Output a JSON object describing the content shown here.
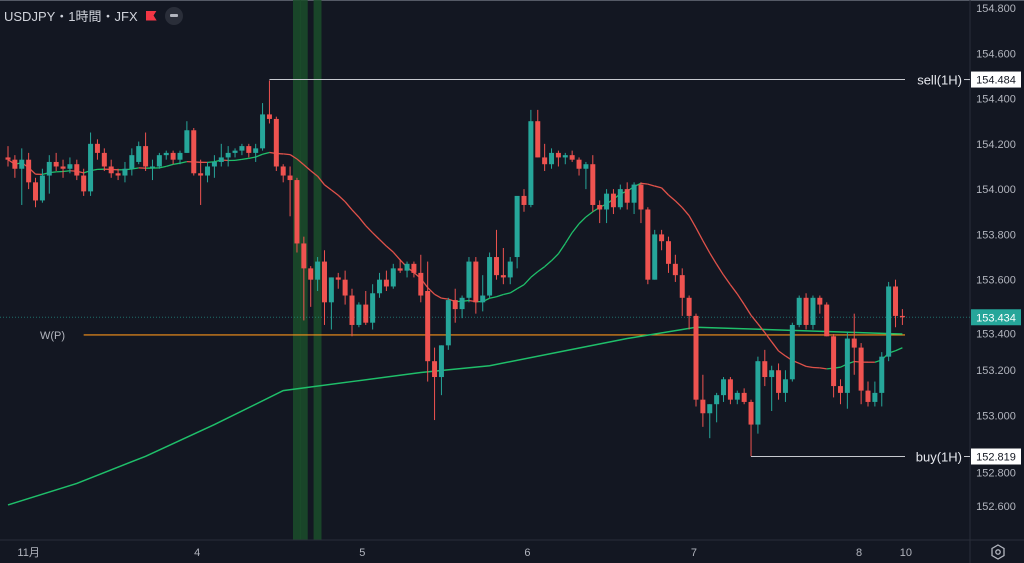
{
  "header": {
    "title": "USDJPY・1時間・JFX",
    "flag_icon": "red-flag-icon",
    "collapse_icon": "minus-circle-icon"
  },
  "colors": {
    "background": "#131722",
    "up": "#26a69a",
    "down": "#ef5350",
    "ma_up": "#1fbf6a",
    "ma_down": "#e0524a",
    "pivot": "#f7931a",
    "highlight": "#1b4d2a",
    "level_line": "#c7c9cf"
  },
  "chart_data": {
    "type": "candlestick",
    "symbol": "USDJPY",
    "interval": "1時間",
    "exchange": "JFX",
    "ylim": [
      152.55,
      154.82
    ],
    "y_ticks": [
      "154.800",
      "154.600",
      "154.400",
      "154.200",
      "154.000",
      "153.800",
      "153.600",
      "153.400",
      "153.200",
      "153.000",
      "152.800",
      "152.600"
    ],
    "x_ticks": [
      {
        "label": "11月",
        "candle": 3
      },
      {
        "label": "4",
        "candle": 27.5
      },
      {
        "label": "5",
        "candle": 51.5
      },
      {
        "label": "6",
        "candle": 75.5
      },
      {
        "label": "7",
        "candle": 99.7
      },
      {
        "label": "8",
        "candle": 123.7
      },
      {
        "label": "10",
        "candle": 130.5
      }
    ],
    "ohlc": [
      [
        154.14,
        154.19,
        154.1,
        154.13
      ],
      [
        154.13,
        154.15,
        154.05,
        154.09
      ],
      [
        154.09,
        154.18,
        153.93,
        154.13
      ],
      [
        154.13,
        154.16,
        154.0,
        154.03
      ],
      [
        154.03,
        154.05,
        153.92,
        153.95
      ],
      [
        153.95,
        154.09,
        153.94,
        154.06
      ],
      [
        154.06,
        154.15,
        153.98,
        154.12
      ],
      [
        154.12,
        154.16,
        154.08,
        154.1
      ],
      [
        154.1,
        154.13,
        154.05,
        154.09
      ],
      [
        154.09,
        154.14,
        154.07,
        154.11
      ],
      [
        154.11,
        154.13,
        154.04,
        154.06
      ],
      [
        154.06,
        154.09,
        153.97,
        153.99
      ],
      [
        153.99,
        154.25,
        153.97,
        154.2
      ],
      [
        154.2,
        154.22,
        154.13,
        154.16
      ],
      [
        154.16,
        154.18,
        154.08,
        154.1
      ],
      [
        154.1,
        154.13,
        154.05,
        154.07
      ],
      [
        154.07,
        154.09,
        154.04,
        154.06
      ],
      [
        154.06,
        154.12,
        154.03,
        154.09
      ],
      [
        154.09,
        154.18,
        154.06,
        154.15
      ],
      [
        154.12,
        154.21,
        154.11,
        154.19
      ],
      [
        154.19,
        154.25,
        154.08,
        154.1
      ],
      [
        154.1,
        154.13,
        154.04,
        154.1
      ],
      [
        154.1,
        154.16,
        154.09,
        154.15
      ],
      [
        154.15,
        154.17,
        154.13,
        154.16
      ],
      [
        154.16,
        154.17,
        154.11,
        154.13
      ],
      [
        154.13,
        154.17,
        154.11,
        154.16
      ],
      [
        154.16,
        154.3,
        154.16,
        154.26
      ],
      [
        154.26,
        154.27,
        154.06,
        154.07
      ],
      [
        154.07,
        154.13,
        153.93,
        154.06
      ],
      [
        154.06,
        154.12,
        154.03,
        154.1
      ],
      [
        154.1,
        154.15,
        154.05,
        154.12
      ],
      [
        154.12,
        154.2,
        154.1,
        154.14
      ],
      [
        154.14,
        154.19,
        154.1,
        154.16
      ],
      [
        154.16,
        154.18,
        154.14,
        154.17
      ],
      [
        154.17,
        154.2,
        154.15,
        154.19
      ],
      [
        154.19,
        154.2,
        154.14,
        154.16
      ],
      [
        154.16,
        154.2,
        154.12,
        154.18
      ],
      [
        154.18,
        154.38,
        154.17,
        154.33
      ],
      [
        154.33,
        154.48,
        154.29,
        154.31
      ],
      [
        154.31,
        154.32,
        154.08,
        154.1
      ],
      [
        154.1,
        154.11,
        154.03,
        154.06
      ],
      [
        154.06,
        154.1,
        153.88,
        154.04
      ],
      [
        154.04,
        154.05,
        153.72,
        153.76
      ],
      [
        153.76,
        153.79,
        153.42,
        153.65
      ],
      [
        153.65,
        153.66,
        153.48,
        153.6
      ],
      [
        153.6,
        153.7,
        153.55,
        153.68
      ],
      [
        153.68,
        153.73,
        153.4,
        153.5
      ],
      [
        153.5,
        153.61,
        153.38,
        153.61
      ],
      [
        153.61,
        153.63,
        153.56,
        153.6
      ],
      [
        153.6,
        153.64,
        153.49,
        153.53
      ],
      [
        153.53,
        153.56,
        153.35,
        153.4
      ],
      [
        153.4,
        153.5,
        153.39,
        153.49
      ],
      [
        153.49,
        153.55,
        153.4,
        153.41
      ],
      [
        153.41,
        153.58,
        153.38,
        153.54
      ],
      [
        153.54,
        153.63,
        153.52,
        153.6
      ],
      [
        153.6,
        153.64,
        153.55,
        153.57
      ],
      [
        153.57,
        153.67,
        153.56,
        153.65
      ],
      [
        153.65,
        153.69,
        153.63,
        153.64
      ],
      [
        153.64,
        153.68,
        153.61,
        153.67
      ],
      [
        153.67,
        153.68,
        153.61,
        153.63
      ],
      [
        153.63,
        153.71,
        153.5,
        153.53
      ],
      [
        153.55,
        153.68,
        153.15,
        153.24
      ],
      [
        153.24,
        153.3,
        152.98,
        153.17
      ],
      [
        153.17,
        153.31,
        153.09,
        153.31
      ],
      [
        153.31,
        153.52,
        153.29,
        153.51
      ],
      [
        153.51,
        153.56,
        153.41,
        153.47
      ],
      [
        153.47,
        153.53,
        153.43,
        153.52
      ],
      [
        153.52,
        153.7,
        153.5,
        153.68
      ],
      [
        153.68,
        153.7,
        153.45,
        153.5
      ],
      [
        153.5,
        153.62,
        153.46,
        153.53
      ],
      [
        153.53,
        153.72,
        153.52,
        153.7
      ],
      [
        153.7,
        153.82,
        153.6,
        153.62
      ],
      [
        153.62,
        153.74,
        153.58,
        153.61
      ],
      [
        153.61,
        153.7,
        153.58,
        153.68
      ],
      [
        153.7,
        153.95,
        153.65,
        153.97
      ],
      [
        153.97,
        154.0,
        153.9,
        153.93
      ],
      [
        153.93,
        154.35,
        153.92,
        154.3
      ],
      [
        154.3,
        154.35,
        154.14,
        154.14
      ],
      [
        154.14,
        154.2,
        154.08,
        154.11
      ],
      [
        154.11,
        154.18,
        154.09,
        154.16
      ],
      [
        154.16,
        154.17,
        154.1,
        154.14
      ],
      [
        154.14,
        154.16,
        154.11,
        154.15
      ],
      [
        154.15,
        154.17,
        154.12,
        154.13
      ],
      [
        154.13,
        154.14,
        154.06,
        154.09
      ],
      [
        154.09,
        154.12,
        154.0,
        154.11
      ],
      [
        154.11,
        154.15,
        153.9,
        153.93
      ],
      [
        153.93,
        153.95,
        153.85,
        153.91
      ],
      [
        153.91,
        154.0,
        153.85,
        153.98
      ],
      [
        153.98,
        154.0,
        153.89,
        153.92
      ],
      [
        153.92,
        154.02,
        153.91,
        154.0
      ],
      [
        154.0,
        154.03,
        153.91,
        153.94
      ],
      [
        153.94,
        154.03,
        153.89,
        154.02
      ],
      [
        154.02,
        154.03,
        153.85,
        153.91
      ],
      [
        153.91,
        153.92,
        153.58,
        153.6
      ],
      [
        153.6,
        153.82,
        153.6,
        153.8
      ],
      [
        153.8,
        153.82,
        153.73,
        153.77
      ],
      [
        153.77,
        153.79,
        153.63,
        153.67
      ],
      [
        153.67,
        153.71,
        153.59,
        153.62
      ],
      [
        153.62,
        153.65,
        153.44,
        153.52
      ],
      [
        153.52,
        153.53,
        153.38,
        153.44
      ],
      [
        153.44,
        153.45,
        153.04,
        153.07
      ],
      [
        153.07,
        153.18,
        152.95,
        153.01
      ],
      [
        153.01,
        153.05,
        152.9,
        153.05
      ],
      [
        153.05,
        153.1,
        152.97,
        153.09
      ],
      [
        153.09,
        153.17,
        153.06,
        153.16
      ],
      [
        153.16,
        153.17,
        153.05,
        153.07
      ],
      [
        153.07,
        153.11,
        153.05,
        153.1
      ],
      [
        153.1,
        153.12,
        153.05,
        153.06
      ],
      [
        153.06,
        153.07,
        152.82,
        152.96
      ],
      [
        152.96,
        153.26,
        152.92,
        153.24
      ],
      [
        153.24,
        153.29,
        153.13,
        153.17
      ],
      [
        153.17,
        153.22,
        153.02,
        153.2
      ],
      [
        153.2,
        153.23,
        153.07,
        153.1
      ],
      [
        153.1,
        153.2,
        153.06,
        153.16
      ],
      [
        153.16,
        153.41,
        153.15,
        153.4
      ],
      [
        153.4,
        153.53,
        153.39,
        153.52
      ],
      [
        153.52,
        153.54,
        153.38,
        153.4
      ],
      [
        153.4,
        153.53,
        153.38,
        153.52
      ],
      [
        153.52,
        153.53,
        153.45,
        153.49
      ],
      [
        153.49,
        153.5,
        153.35,
        153.35
      ],
      [
        153.35,
        153.36,
        153.08,
        153.13
      ],
      [
        153.13,
        153.16,
        153.05,
        153.1
      ],
      [
        153.1,
        153.37,
        153.03,
        153.34
      ],
      [
        153.34,
        153.45,
        153.18,
        153.3
      ],
      [
        153.3,
        153.32,
        153.05,
        153.11
      ],
      [
        153.11,
        153.15,
        153.04,
        153.06
      ],
      [
        153.06,
        153.15,
        153.04,
        153.1
      ],
      [
        153.1,
        153.28,
        153.04,
        153.26
      ],
      [
        153.26,
        153.59,
        153.24,
        153.57
      ],
      [
        153.57,
        153.6,
        153.39,
        153.44
      ],
      [
        153.44,
        153.47,
        153.4,
        153.434
      ]
    ],
    "ma_short_period": 20,
    "ma_long": [
      {
        "candle": 0,
        "value": 152.605
      },
      {
        "candle": 10,
        "value": 152.7
      },
      {
        "candle": 20,
        "value": 152.82
      },
      {
        "candle": 30,
        "value": 152.96
      },
      {
        "candle": 40,
        "value": 153.11
      },
      {
        "candle": 50,
        "value": 153.15
      },
      {
        "candle": 60,
        "value": 153.19
      },
      {
        "candle": 70,
        "value": 153.22
      },
      {
        "candle": 80,
        "value": 153.28
      },
      {
        "candle": 90,
        "value": 153.34
      },
      {
        "candle": 100,
        "value": 153.39
      },
      {
        "candle": 110,
        "value": 153.38
      },
      {
        "candle": 120,
        "value": 153.37
      },
      {
        "candle": 130,
        "value": 153.36
      }
    ],
    "highlight_candles": [
      42,
      43,
      45
    ],
    "levels": {
      "sell": {
        "label": "sell(1H)",
        "price": 154.484,
        "price_text": "154.484",
        "from_candle": 38
      },
      "buy": {
        "label": "buy(1H)",
        "price": 152.819,
        "price_text": "152.819",
        "from_candle": 108
      },
      "pivot": {
        "label": "W(P)",
        "price": 153.356,
        "from_candle": 11
      }
    },
    "last_price": {
      "value": 153.434,
      "text": "153.434"
    }
  },
  "footer": {
    "settings_icon": "settings-hexagon-icon"
  }
}
